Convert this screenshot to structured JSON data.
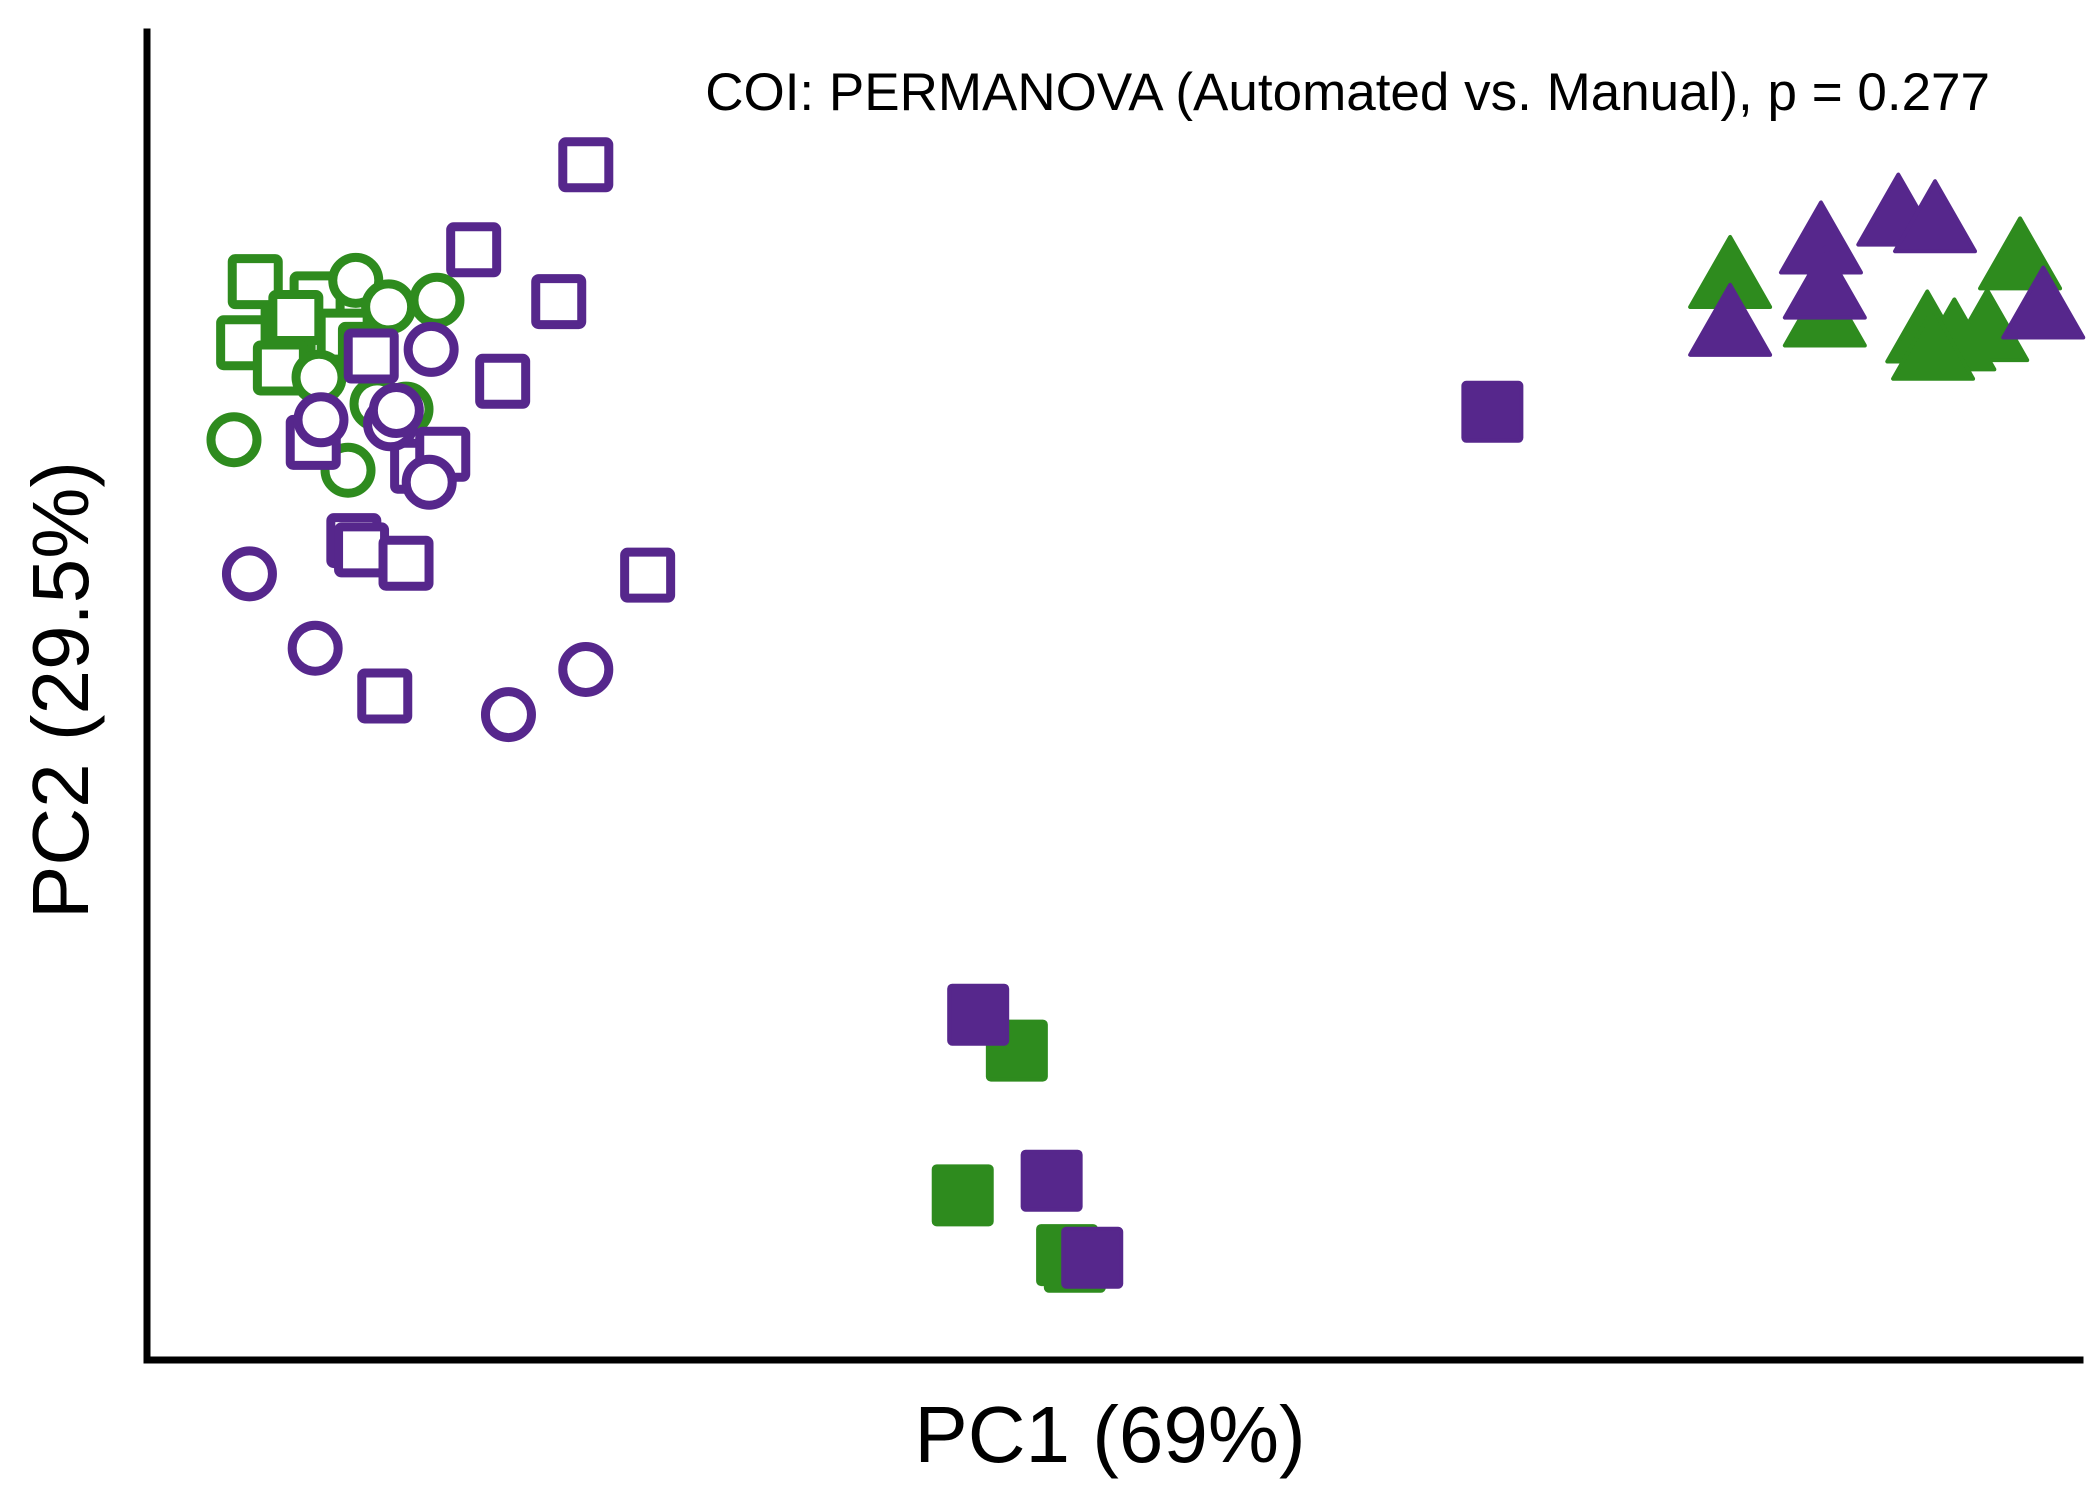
{
  "chart_data": {
    "type": "scatter",
    "title": "",
    "annotation": "COI: PERMANOVA (Automated vs. Manual), p = 0.277",
    "xlabel": "PC1 (69%)",
    "ylabel": "PC2 (29.5%)",
    "xlim": [
      0,
      100
    ],
    "ylim": [
      0,
      100
    ],
    "ticks_shown": false,
    "grid": false,
    "legend": "none",
    "colors": {
      "automated": "#2e8b1e",
      "manual": "#56278c"
    },
    "series": [
      {
        "color": "automated",
        "shape": "square",
        "filled": false,
        "points": [
          [
            5.6,
            81.2
          ],
          [
            5.0,
            76.6
          ],
          [
            7.3,
            77.6
          ],
          [
            8.8,
            79.9
          ],
          [
            7.7,
            78.5
          ],
          [
            10.2,
            77.1
          ],
          [
            11.3,
            76.1
          ],
          [
            6.9,
            74.7
          ]
        ]
      },
      {
        "color": "automated",
        "shape": "circle",
        "filled": false,
        "points": [
          [
            10.8,
            81.3
          ],
          [
            12.5,
            79.3
          ],
          [
            15.0,
            79.8
          ],
          [
            4.5,
            69.3
          ],
          [
            10.4,
            67.0
          ],
          [
            8.9,
            74.0
          ],
          [
            11.9,
            72.0
          ],
          [
            13.4,
            71.6
          ]
        ]
      },
      {
        "color": "manual",
        "shape": "square",
        "filled": false,
        "points": [
          [
            22.7,
            90.0
          ],
          [
            16.9,
            83.6
          ],
          [
            21.3,
            79.7
          ],
          [
            11.6,
            75.6
          ],
          [
            18.4,
            73.7
          ],
          [
            8.6,
            69.1
          ],
          [
            14.0,
            67.3
          ],
          [
            15.3,
            68.2
          ],
          [
            10.7,
            61.7
          ],
          [
            11.1,
            61.0
          ],
          [
            13.4,
            60.0
          ],
          [
            25.9,
            59.1
          ],
          [
            12.3,
            50.0
          ]
        ]
      },
      {
        "color": "manual",
        "shape": "circle",
        "filled": false,
        "points": [
          [
            14.7,
            76.1
          ],
          [
            9.0,
            70.8
          ],
          [
            12.6,
            70.5
          ],
          [
            12.9,
            71.5
          ],
          [
            14.6,
            66.1
          ],
          [
            5.3,
            59.2
          ],
          [
            8.7,
            53.6
          ],
          [
            22.7,
            52.0
          ],
          [
            18.7,
            48.6
          ]
        ]
      },
      {
        "color": "automated",
        "shape": "square",
        "filled": true,
        "points": [
          [
            45.0,
            23.3
          ],
          [
            42.2,
            12.4
          ],
          [
            47.6,
            7.9
          ],
          [
            48.0,
            7.4
          ]
        ]
      },
      {
        "color": "manual",
        "shape": "square",
        "filled": true,
        "points": [
          [
            43.0,
            26.0
          ],
          [
            46.8,
            13.5
          ],
          [
            48.9,
            7.7
          ],
          [
            69.6,
            71.4
          ]
        ]
      },
      {
        "color": "automated",
        "shape": "triangle",
        "filled": true,
        "points": [
          [
            81.9,
            81.4
          ],
          [
            86.8,
            78.5
          ],
          [
            92.1,
            77.3
          ],
          [
            95.2,
            77.4
          ],
          [
            96.9,
            82.8
          ],
          [
            93.5,
            76.7
          ],
          [
            92.4,
            76.0
          ]
        ]
      },
      {
        "color": "manual",
        "shape": "triangle",
        "filled": true,
        "points": [
          [
            86.6,
            84.0
          ],
          [
            90.6,
            86.1
          ],
          [
            92.5,
            85.6
          ],
          [
            86.8,
            80.6
          ],
          [
            81.9,
            77.8
          ],
          [
            98.1,
            79.1
          ]
        ]
      }
    ]
  }
}
